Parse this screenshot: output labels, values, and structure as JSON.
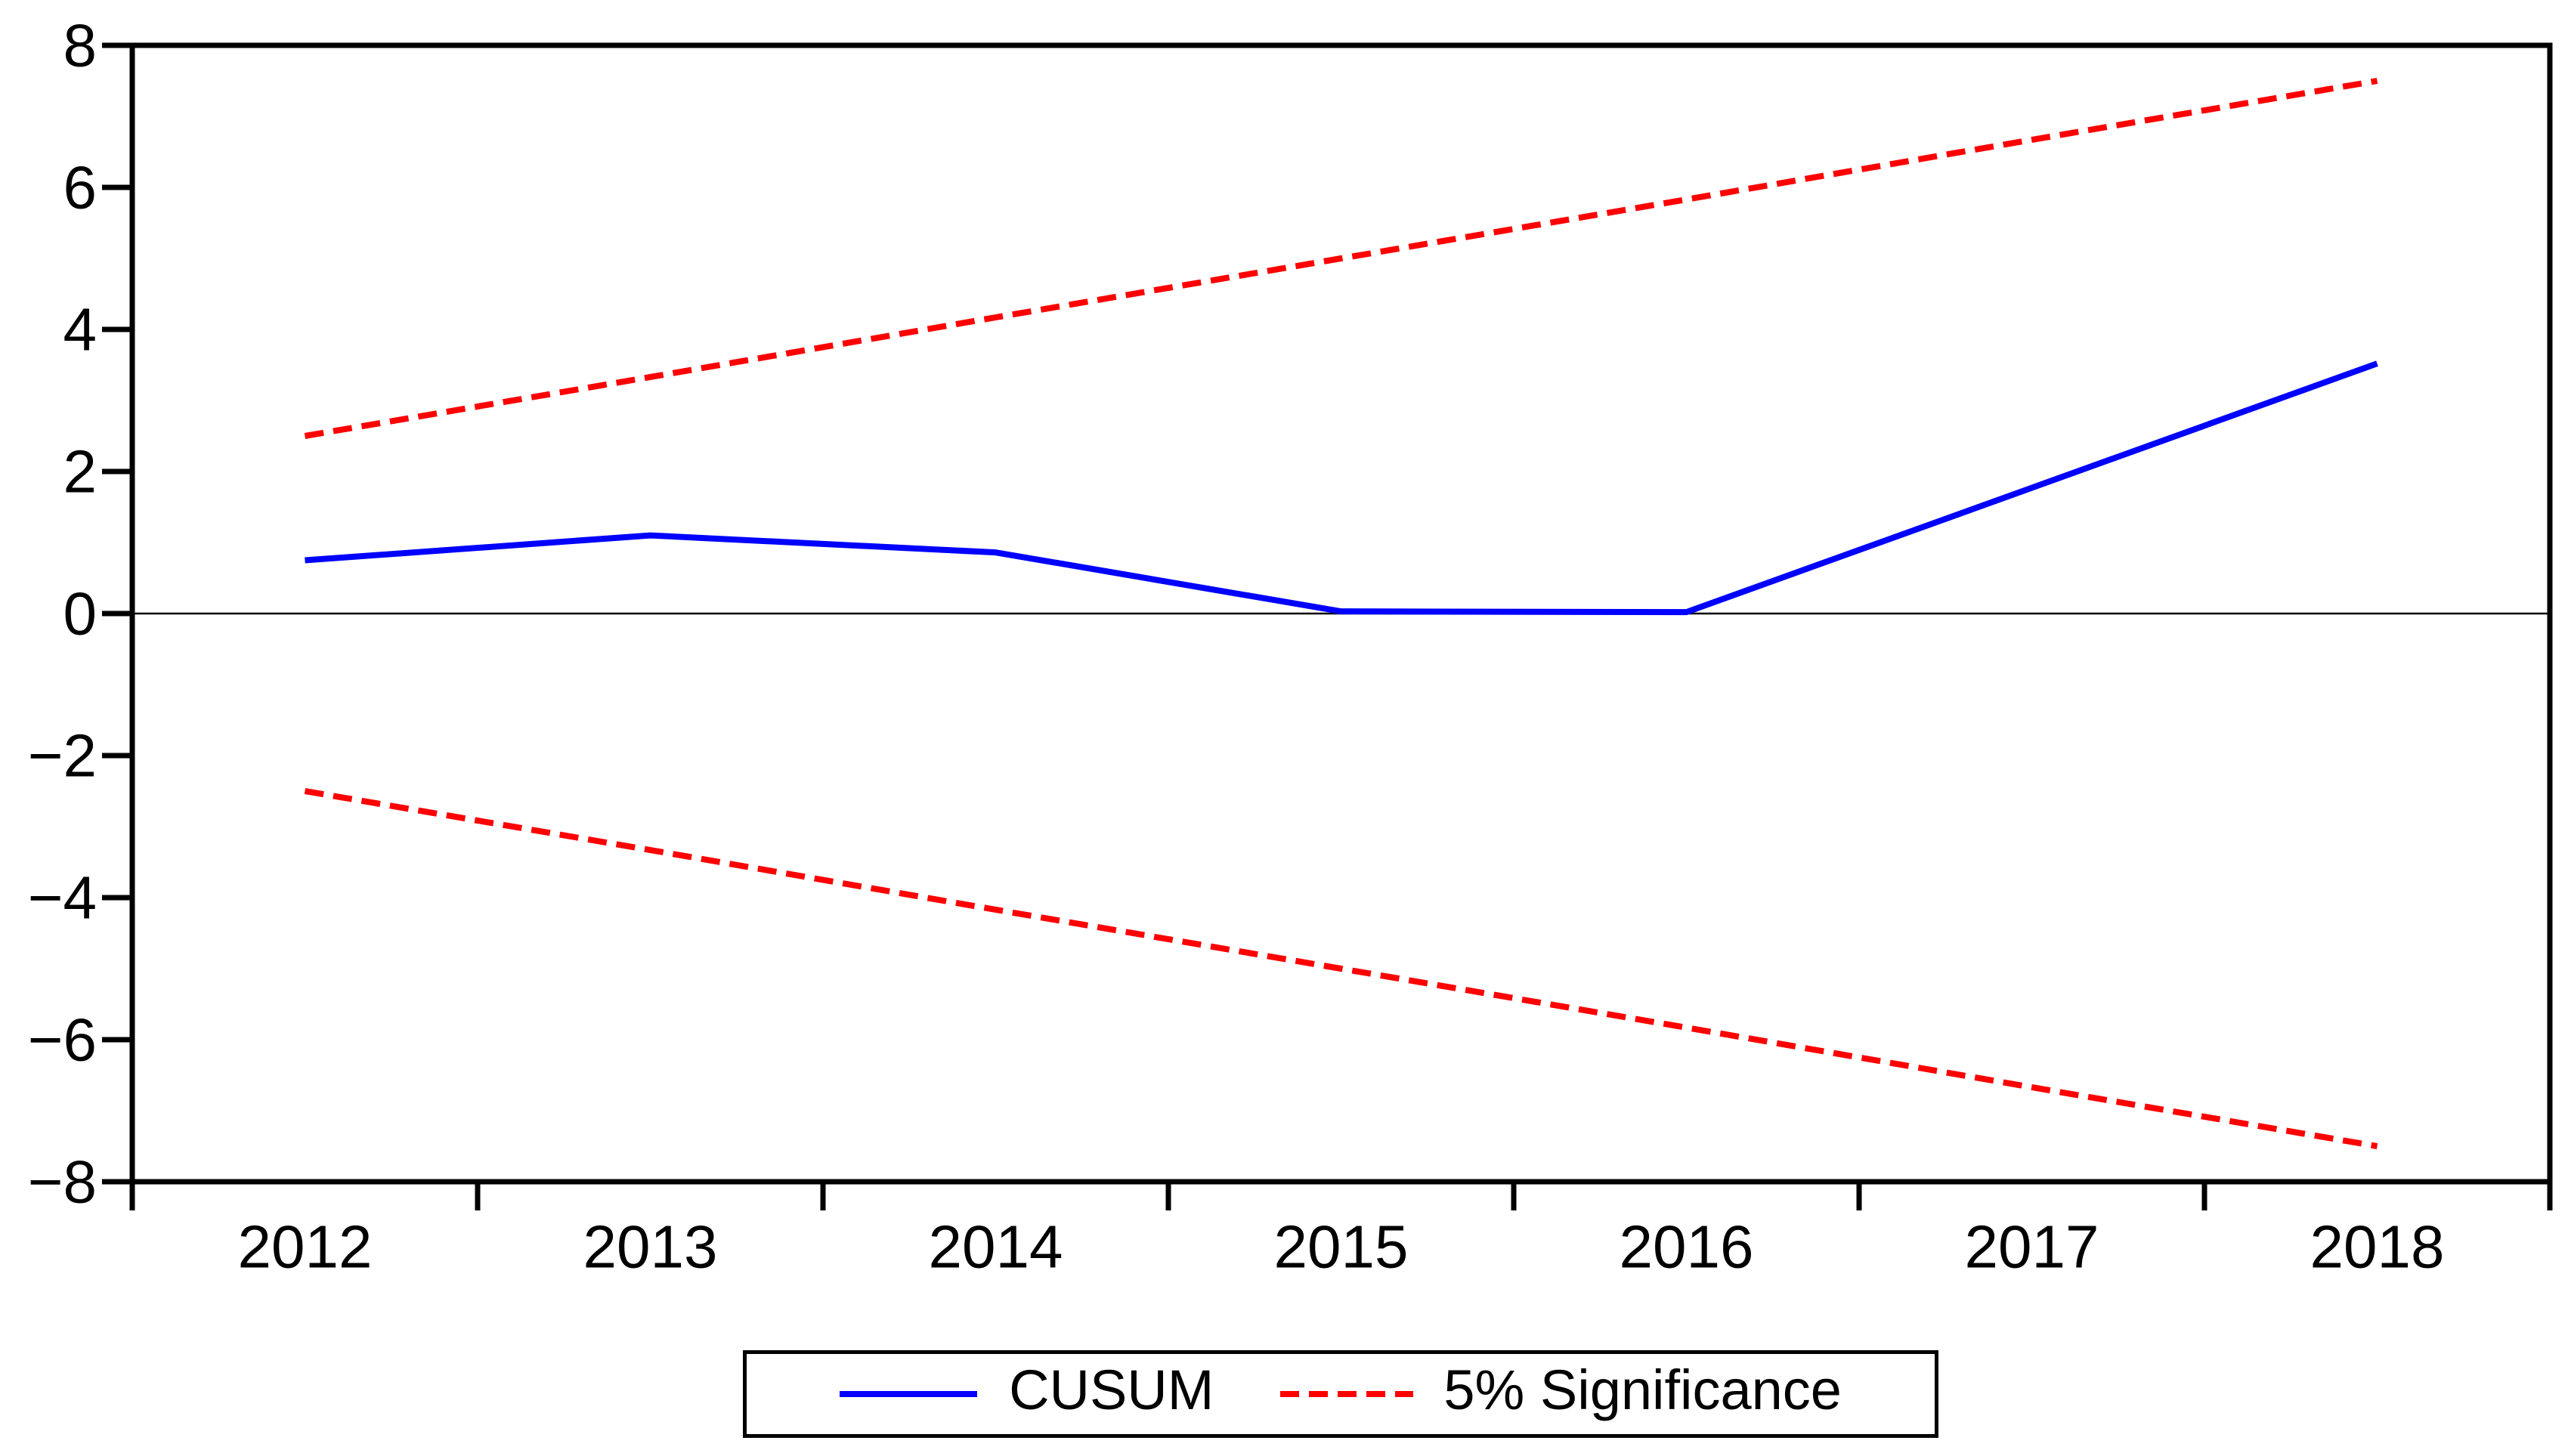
{
  "chart_data": {
    "type": "line",
    "title": "",
    "xlabel": "",
    "ylabel": "",
    "x": [
      2012,
      2013,
      2014,
      2015,
      2016,
      2017,
      2018
    ],
    "xtick_labels": [
      "2012",
      "2013",
      "2014",
      "2015",
      "2016",
      "2017",
      "2018"
    ],
    "series": [
      {
        "name": "CUSUM",
        "color": "#0000fe",
        "style": "solid",
        "values": [
          0.75,
          1.1,
          0.86,
          0.03,
          0.02,
          1.77,
          3.52
        ]
      },
      {
        "name": "5% Significance (upper bound)",
        "color": "#fe0000",
        "style": "dashed",
        "values": [
          2.5,
          3.33,
          4.17,
          5.0,
          5.83,
          6.67,
          7.5
        ]
      },
      {
        "name": "5% Significance (lower bound)",
        "color": "#fe0000",
        "style": "dashed",
        "values": [
          -2.5,
          -3.33,
          -4.17,
          -5.0,
          -5.83,
          -6.67,
          -7.5
        ]
      }
    ],
    "ylim": [
      -8,
      8
    ],
    "yticks": [
      8,
      6,
      4,
      2,
      0,
      -2,
      -4,
      -6,
      -8
    ],
    "zero_line": true,
    "grid": false,
    "frame_color": "#000000",
    "zero_line_color": "#000000",
    "legend": {
      "position": "bottom-center",
      "entries": [
        {
          "label": "CUSUM",
          "color": "#0000fe",
          "style": "solid"
        },
        {
          "label": "5% Significance",
          "color": "#fe0000",
          "style": "dashed"
        }
      ]
    }
  }
}
